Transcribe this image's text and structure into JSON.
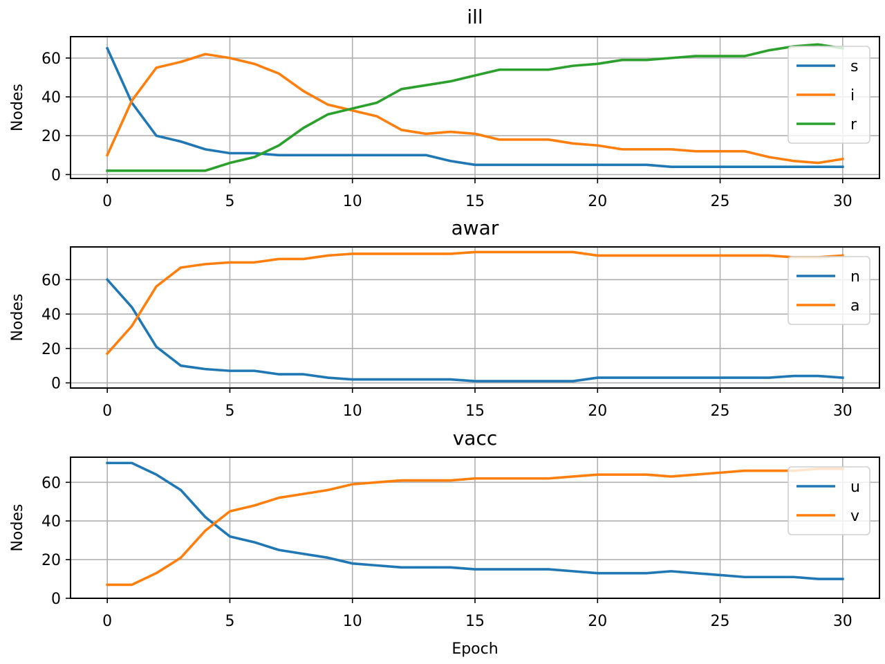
{
  "chart_data": [
    {
      "type": "line",
      "title": "ill",
      "xlabel": "",
      "ylabel": "Nodes",
      "xlim": [
        0,
        30
      ],
      "ylim": [
        0,
        70
      ],
      "xticks": [
        "0",
        "5",
        "10",
        "15",
        "20",
        "25",
        "30"
      ],
      "yticks": [
        "0",
        "20",
        "40",
        "60"
      ],
      "grid": true,
      "legend_position": "top-right",
      "x": [
        0,
        1,
        2,
        3,
        4,
        5,
        6,
        7,
        8,
        9,
        10,
        11,
        12,
        13,
        14,
        15,
        16,
        17,
        18,
        19,
        20,
        21,
        22,
        23,
        24,
        25,
        26,
        27,
        28,
        29,
        30
      ],
      "series": [
        {
          "name": "s",
          "color": "#1f77b4",
          "values": [
            65,
            37,
            20,
            17,
            13,
            11,
            11,
            10,
            10,
            10,
            10,
            10,
            10,
            10,
            7,
            5,
            5,
            5,
            5,
            5,
            5,
            5,
            5,
            4,
            4,
            4,
            4,
            4,
            4,
            4,
            4
          ]
        },
        {
          "name": "i",
          "color": "#ff7f0e",
          "values": [
            10,
            38,
            55,
            58,
            62,
            60,
            57,
            52,
            43,
            36,
            33,
            30,
            23,
            21,
            22,
            21,
            18,
            18,
            18,
            16,
            15,
            13,
            13,
            13,
            12,
            12,
            12,
            9,
            7,
            6,
            8
          ]
        },
        {
          "name": "r",
          "color": "#2ca02c",
          "values": [
            2,
            2,
            2,
            2,
            2,
            6,
            9,
            15,
            24,
            31,
            34,
            37,
            44,
            46,
            48,
            51,
            54,
            54,
            54,
            56,
            57,
            59,
            59,
            60,
            61,
            61,
            61,
            64,
            66,
            67,
            65
          ]
        }
      ]
    },
    {
      "type": "line",
      "title": "awar",
      "xlabel": "",
      "ylabel": "Nodes",
      "xlim": [
        0,
        30
      ],
      "ylim": [
        0,
        78
      ],
      "xticks": [
        "0",
        "5",
        "10",
        "15",
        "20",
        "25",
        "30"
      ],
      "yticks": [
        "0",
        "20",
        "40",
        "60"
      ],
      "grid": true,
      "legend_position": "top-right",
      "x": [
        0,
        1,
        2,
        3,
        4,
        5,
        6,
        7,
        8,
        9,
        10,
        11,
        12,
        13,
        14,
        15,
        16,
        17,
        18,
        19,
        20,
        21,
        22,
        23,
        24,
        25,
        26,
        27,
        28,
        29,
        30
      ],
      "series": [
        {
          "name": "n",
          "color": "#1f77b4",
          "values": [
            60,
            44,
            21,
            10,
            8,
            7,
            7,
            5,
            5,
            3,
            2,
            2,
            2,
            2,
            2,
            1,
            1,
            1,
            1,
            1,
            3,
            3,
            3,
            3,
            3,
            3,
            3,
            3,
            4,
            4,
            3
          ]
        },
        {
          "name": "a",
          "color": "#ff7f0e",
          "values": [
            17,
            33,
            56,
            67,
            69,
            70,
            70,
            72,
            72,
            74,
            75,
            75,
            75,
            75,
            75,
            76,
            76,
            76,
            76,
            76,
            74,
            74,
            74,
            74,
            74,
            74,
            74,
            74,
            73,
            73,
            74
          ]
        }
      ]
    },
    {
      "type": "line",
      "title": "vacc",
      "xlabel": "Epoch",
      "ylabel": "Nodes",
      "xlim": [
        0,
        30
      ],
      "ylim": [
        0,
        72
      ],
      "xticks": [
        "0",
        "5",
        "10",
        "15",
        "20",
        "25",
        "30"
      ],
      "yticks": [
        "0",
        "20",
        "40",
        "60"
      ],
      "grid": true,
      "legend_position": "top-right",
      "x": [
        0,
        1,
        2,
        3,
        4,
        5,
        6,
        7,
        8,
        9,
        10,
        11,
        12,
        13,
        14,
        15,
        16,
        17,
        18,
        19,
        20,
        21,
        22,
        23,
        24,
        25,
        26,
        27,
        28,
        29,
        30
      ],
      "series": [
        {
          "name": "u",
          "color": "#1f77b4",
          "values": [
            70,
            70,
            64,
            56,
            42,
            32,
            29,
            25,
            23,
            21,
            18,
            17,
            16,
            16,
            16,
            15,
            15,
            15,
            15,
            14,
            13,
            13,
            13,
            14,
            13,
            12,
            11,
            11,
            11,
            10,
            10
          ]
        },
        {
          "name": "v",
          "color": "#ff7f0e",
          "values": [
            7,
            7,
            13,
            21,
            35,
            45,
            48,
            52,
            54,
            56,
            59,
            60,
            61,
            61,
            61,
            62,
            62,
            62,
            62,
            63,
            64,
            64,
            64,
            63,
            64,
            65,
            66,
            66,
            66,
            67,
            67
          ]
        }
      ]
    }
  ]
}
